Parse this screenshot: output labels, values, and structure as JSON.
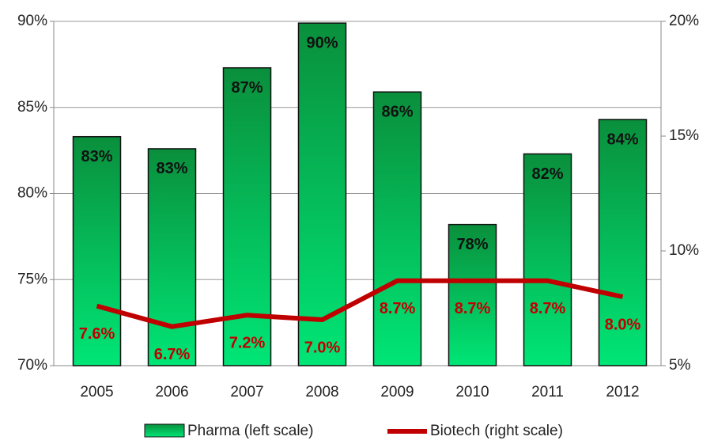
{
  "chart_data": {
    "type": "bar_line",
    "categories": [
      "2005",
      "2006",
      "2007",
      "2008",
      "2009",
      "2010",
      "2011",
      "2012"
    ],
    "series": [
      {
        "name": "Pharma (left scale)",
        "color": "#00c853",
        "type": "bar",
        "values": [
          83.3,
          82.6,
          87.3,
          89.9,
          85.9,
          78.2,
          82.3,
          84.3
        ],
        "value_labels": [
          "83%",
          "83%",
          "87%",
          "90%",
          "86%",
          "78%",
          "82%",
          "84%"
        ]
      },
      {
        "name": "Biotech (right scale)",
        "color": "#c00000",
        "type": "line",
        "axis": "y2",
        "values": [
          7.6,
          6.7,
          7.2,
          7.0,
          8.7,
          8.7,
          8.7,
          8.0
        ],
        "value_labels": [
          "7.6%",
          "6.7%",
          "7.2%",
          "7.0%",
          "8.7%",
          "8.7%",
          "8.7%",
          "8.0%"
        ]
      }
    ],
    "ylim": [
      70,
      90
    ],
    "yticks": [
      {
        "value": 70,
        "label": "70%"
      },
      {
        "value": 75,
        "label": "75%"
      },
      {
        "value": 80,
        "label": "80%"
      },
      {
        "value": 85,
        "label": "85%"
      },
      {
        "value": 90,
        "label": "90%"
      }
    ],
    "y2lim": [
      5,
      20
    ],
    "y2ticks": [
      {
        "value": 5,
        "label": "5%"
      },
      {
        "value": 10,
        "label": "10%"
      },
      {
        "value": 15,
        "label": "15%"
      },
      {
        "value": 20,
        "label": "20%"
      }
    ],
    "grid": true
  }
}
